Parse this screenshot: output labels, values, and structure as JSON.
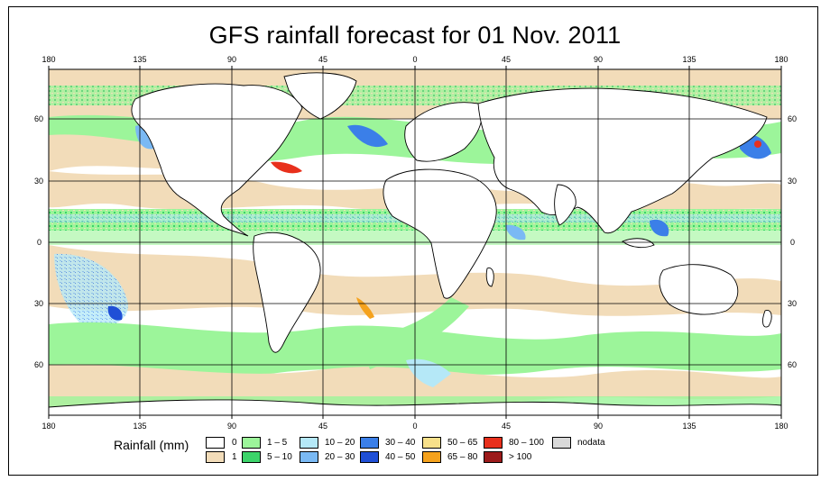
{
  "title": "GFS rainfall forecast for 01 Nov. 2011",
  "map": {
    "lon_ticks": [
      "180",
      "135",
      "90",
      "45",
      "0",
      "45",
      "90",
      "135",
      "180"
    ],
    "lat_ticks": [
      "60",
      "30",
      "0",
      "30",
      "60"
    ],
    "extent": {
      "lon": [
        -180,
        180
      ],
      "lat": [
        -90,
        90
      ]
    }
  },
  "legend": {
    "title": "Rainfall (mm)",
    "items": [
      {
        "label": "0",
        "color": "#ffffff"
      },
      {
        "label": "1",
        "color": "#f2dcb9"
      },
      {
        "label": "1 – 5",
        "color": "#9cf59a"
      },
      {
        "label": "5 – 10",
        "color": "#3cd46a"
      },
      {
        "label": "10 – 20",
        "color": "#b5e8f7"
      },
      {
        "label": "20 – 30",
        "color": "#7ab9f4"
      },
      {
        "label": "30 – 40",
        "color": "#3b7fe8"
      },
      {
        "label": "40 – 50",
        "color": "#1f4fd6"
      },
      {
        "label": "50 – 65",
        "color": "#f7e08a"
      },
      {
        "label": "65 – 80",
        "color": "#f5a21d"
      },
      {
        "label": "80 – 100",
        "color": "#e8301c"
      },
      {
        "label": "> 100",
        "color": "#9c1b1b"
      },
      {
        "label": "nodata",
        "color": "#d9d9d9"
      }
    ]
  }
}
